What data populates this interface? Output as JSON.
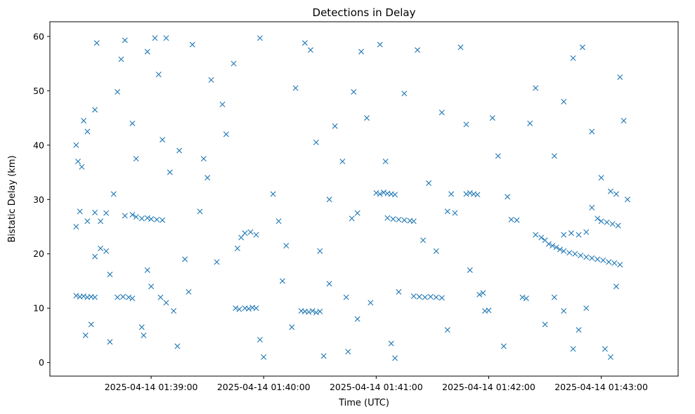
{
  "chart_data": {
    "type": "scatter",
    "title": "Detections in Delay",
    "xlabel": "Time (UTC)",
    "ylabel": "Bistatic Delay (km)",
    "x_tick_labels": [
      "2025-04-14 01:39:00",
      "2025-04-14 01:40:00",
      "2025-04-14 01:41:00",
      "2025-04-14 01:42:00",
      "2025-04-14 01:43:00"
    ],
    "y_tick_labels": [
      "0",
      "10",
      "20",
      "30",
      "40",
      "50",
      "60"
    ],
    "xlim": [
      "2025-04-14 01:38:06",
      "2025-04-14 01:43:41"
    ],
    "ylim": [
      -2.5,
      62.7
    ],
    "marker": "x",
    "color": "#1f77b4",
    "grid": false,
    "series": [
      {
        "points": [
          {
            "x": "2025-04-14 01:38:20",
            "y": 12.3
          },
          {
            "x": "2025-04-14 01:38:22",
            "y": 12.1
          },
          {
            "x": "2025-04-14 01:38:24",
            "y": 12.2
          },
          {
            "x": "2025-04-14 01:38:26",
            "y": 12.0
          },
          {
            "x": "2025-04-14 01:38:28",
            "y": 12.1
          },
          {
            "x": "2025-04-14 01:38:30",
            "y": 12.0
          },
          {
            "x": "2025-04-14 01:38:20",
            "y": 25.0
          },
          {
            "x": "2025-04-14 01:38:22",
            "y": 27.8
          },
          {
            "x": "2025-04-14 01:38:26",
            "y": 26.0
          },
          {
            "x": "2025-04-14 01:38:30",
            "y": 27.6
          },
          {
            "x": "2025-04-14 01:38:33",
            "y": 26.0
          },
          {
            "x": "2025-04-14 01:38:36",
            "y": 27.5
          },
          {
            "x": "2025-04-14 01:38:20",
            "y": 40.0
          },
          {
            "x": "2025-04-14 01:38:21",
            "y": 37.0
          },
          {
            "x": "2025-04-14 01:38:23",
            "y": 36.0
          },
          {
            "x": "2025-04-14 01:38:24",
            "y": 44.5
          },
          {
            "x": "2025-04-14 01:38:26",
            "y": 42.5
          },
          {
            "x": "2025-04-14 01:38:30",
            "y": 46.5
          },
          {
            "x": "2025-04-14 01:38:25",
            "y": 5.0
          },
          {
            "x": "2025-04-14 01:38:28",
            "y": 7.0
          },
          {
            "x": "2025-04-14 01:38:30",
            "y": 19.5
          },
          {
            "x": "2025-04-14 01:38:33",
            "y": 21.0
          },
          {
            "x": "2025-04-14 01:38:36",
            "y": 20.5
          },
          {
            "x": "2025-04-14 01:38:38",
            "y": 3.8
          },
          {
            "x": "2025-04-14 01:38:31",
            "y": 58.8
          },
          {
            "x": "2025-04-14 01:38:38",
            "y": 16.2
          },
          {
            "x": "2025-04-14 01:38:40",
            "y": 31.0
          },
          {
            "x": "2025-04-14 01:38:42",
            "y": 49.8
          },
          {
            "x": "2025-04-14 01:38:44",
            "y": 55.8
          },
          {
            "x": "2025-04-14 01:38:46",
            "y": 59.3
          },
          {
            "x": "2025-04-14 01:38:42",
            "y": 12.0
          },
          {
            "x": "2025-04-14 01:38:45",
            "y": 12.1
          },
          {
            "x": "2025-04-14 01:38:48",
            "y": 12.0
          },
          {
            "x": "2025-04-14 01:38:50",
            "y": 11.8
          },
          {
            "x": "2025-04-14 01:38:46",
            "y": 27.0
          },
          {
            "x": "2025-04-14 01:38:50",
            "y": 27.2
          },
          {
            "x": "2025-04-14 01:38:52",
            "y": 26.8
          },
          {
            "x": "2025-04-14 01:38:55",
            "y": 26.5
          },
          {
            "x": "2025-04-14 01:38:58",
            "y": 26.6
          },
          {
            "x": "2025-04-14 01:39:00",
            "y": 26.4
          },
          {
            "x": "2025-04-14 01:39:03",
            "y": 26.3
          },
          {
            "x": "2025-04-14 01:39:06",
            "y": 26.2
          },
          {
            "x": "2025-04-14 01:38:50",
            "y": 44.0
          },
          {
            "x": "2025-04-14 01:38:52",
            "y": 37.5
          },
          {
            "x": "2025-04-14 01:38:55",
            "y": 6.5
          },
          {
            "x": "2025-04-14 01:38:56",
            "y": 5.0
          },
          {
            "x": "2025-04-14 01:38:58",
            "y": 17.0
          },
          {
            "x": "2025-04-14 01:39:00",
            "y": 14.0
          },
          {
            "x": "2025-04-14 01:38:58",
            "y": 57.2
          },
          {
            "x": "2025-04-14 01:39:02",
            "y": 59.7
          },
          {
            "x": "2025-04-14 01:39:04",
            "y": 53.0
          },
          {
            "x": "2025-04-14 01:39:06",
            "y": 41.0
          },
          {
            "x": "2025-04-14 01:39:08",
            "y": 59.7
          },
          {
            "x": "2025-04-14 01:39:10",
            "y": 35.0
          },
          {
            "x": "2025-04-14 01:39:05",
            "y": 12.0
          },
          {
            "x": "2025-04-14 01:39:08",
            "y": 11.0
          },
          {
            "x": "2025-04-14 01:39:12",
            "y": 9.5
          },
          {
            "x": "2025-04-14 01:39:14",
            "y": 3.0
          },
          {
            "x": "2025-04-14 01:39:18",
            "y": 19.0
          },
          {
            "x": "2025-04-14 01:39:20",
            "y": 13.0
          },
          {
            "x": "2025-04-14 01:39:15",
            "y": 39.0
          },
          {
            "x": "2025-04-14 01:39:22",
            "y": 58.5
          },
          {
            "x": "2025-04-14 01:39:26",
            "y": 27.8
          },
          {
            "x": "2025-04-14 01:39:28",
            "y": 37.5
          },
          {
            "x": "2025-04-14 01:39:32",
            "y": 52.0
          },
          {
            "x": "2025-04-14 01:39:35",
            "y": 18.5
          },
          {
            "x": "2025-04-14 01:39:30",
            "y": 34.0
          },
          {
            "x": "2025-04-14 01:39:38",
            "y": 47.5
          },
          {
            "x": "2025-04-14 01:39:40",
            "y": 42.0
          },
          {
            "x": "2025-04-14 01:39:44",
            "y": 55.0
          },
          {
            "x": "2025-04-14 01:39:46",
            "y": 21.0
          },
          {
            "x": "2025-04-14 01:39:48",
            "y": 23.0
          },
          {
            "x": "2025-04-14 01:39:45",
            "y": 10.0
          },
          {
            "x": "2025-04-14 01:39:47",
            "y": 9.8
          },
          {
            "x": "2025-04-14 01:39:50",
            "y": 10.0
          },
          {
            "x": "2025-04-14 01:39:52",
            "y": 9.9
          },
          {
            "x": "2025-04-14 01:39:54",
            "y": 10.1
          },
          {
            "x": "2025-04-14 01:39:56",
            "y": 10.0
          },
          {
            "x": "2025-04-14 01:39:50",
            "y": 23.8
          },
          {
            "x": "2025-04-14 01:39:53",
            "y": 24.0
          },
          {
            "x": "2025-04-14 01:39:56",
            "y": 23.5
          },
          {
            "x": "2025-04-14 01:39:58",
            "y": 59.7
          },
          {
            "x": "2025-04-14 01:39:58",
            "y": 4.2
          },
          {
            "x": "2025-04-14 01:40:00",
            "y": 1.0
          },
          {
            "x": "2025-04-14 01:40:05",
            "y": 31.0
          },
          {
            "x": "2025-04-14 01:40:08",
            "y": 26.0
          },
          {
            "x": "2025-04-14 01:40:10",
            "y": 15.0
          },
          {
            "x": "2025-04-14 01:40:12",
            "y": 21.5
          },
          {
            "x": "2025-04-14 01:40:15",
            "y": 6.5
          },
          {
            "x": "2025-04-14 01:40:17",
            "y": 50.5
          },
          {
            "x": "2025-04-14 01:40:20",
            "y": 9.5
          },
          {
            "x": "2025-04-14 01:40:22",
            "y": 9.4
          },
          {
            "x": "2025-04-14 01:40:24",
            "y": 9.3
          },
          {
            "x": "2025-04-14 01:40:26",
            "y": 9.5
          },
          {
            "x": "2025-04-14 01:40:28",
            "y": 9.2
          },
          {
            "x": "2025-04-14 01:40:30",
            "y": 9.4
          },
          {
            "x": "2025-04-14 01:40:22",
            "y": 58.8
          },
          {
            "x": "2025-04-14 01:40:25",
            "y": 57.5
          },
          {
            "x": "2025-04-14 01:40:28",
            "y": 40.5
          },
          {
            "x": "2025-04-14 01:40:30",
            "y": 20.5
          },
          {
            "x": "2025-04-14 01:40:32",
            "y": 1.2
          },
          {
            "x": "2025-04-14 01:40:35",
            "y": 14.5
          },
          {
            "x": "2025-04-14 01:40:35",
            "y": 30.0
          },
          {
            "x": "2025-04-14 01:40:38",
            "y": 43.5
          },
          {
            "x": "2025-04-14 01:40:42",
            "y": 37.0
          },
          {
            "x": "2025-04-14 01:40:44",
            "y": 12.0
          },
          {
            "x": "2025-04-14 01:40:47",
            "y": 26.5
          },
          {
            "x": "2025-04-14 01:40:50",
            "y": 27.5
          },
          {
            "x": "2025-04-14 01:40:45",
            "y": 2.0
          },
          {
            "x": "2025-04-14 01:40:48",
            "y": 49.8
          },
          {
            "x": "2025-04-14 01:40:50",
            "y": 8.0
          },
          {
            "x": "2025-04-14 01:40:52",
            "y": 57.2
          },
          {
            "x": "2025-04-14 01:40:55",
            "y": 45.0
          },
          {
            "x": "2025-04-14 01:40:57",
            "y": 11.0
          },
          {
            "x": "2025-04-14 01:41:00",
            "y": 31.2
          },
          {
            "x": "2025-04-14 01:41:02",
            "y": 31.0
          },
          {
            "x": "2025-04-14 01:41:04",
            "y": 31.3
          },
          {
            "x": "2025-04-14 01:41:06",
            "y": 31.1
          },
          {
            "x": "2025-04-14 01:41:08",
            "y": 31.0
          },
          {
            "x": "2025-04-14 01:41:10",
            "y": 30.9
          },
          {
            "x": "2025-04-14 01:41:06",
            "y": 26.6
          },
          {
            "x": "2025-04-14 01:41:09",
            "y": 26.4
          },
          {
            "x": "2025-04-14 01:41:12",
            "y": 26.3
          },
          {
            "x": "2025-04-14 01:41:15",
            "y": 26.2
          },
          {
            "x": "2025-04-14 01:41:18",
            "y": 26.1
          },
          {
            "x": "2025-04-14 01:41:20",
            "y": 26.0
          },
          {
            "x": "2025-04-14 01:41:02",
            "y": 58.5
          },
          {
            "x": "2025-04-14 01:41:05",
            "y": 37.0
          },
          {
            "x": "2025-04-14 01:41:08",
            "y": 3.5
          },
          {
            "x": "2025-04-14 01:41:10",
            "y": 0.8
          },
          {
            "x": "2025-04-14 01:41:12",
            "y": 13.0
          },
          {
            "x": "2025-04-14 01:41:15",
            "y": 49.5
          },
          {
            "x": "2025-04-14 01:41:20",
            "y": 12.2
          },
          {
            "x": "2025-04-14 01:41:23",
            "y": 12.1
          },
          {
            "x": "2025-04-14 01:41:26",
            "y": 12.0
          },
          {
            "x": "2025-04-14 01:41:29",
            "y": 12.1
          },
          {
            "x": "2025-04-14 01:41:32",
            "y": 12.0
          },
          {
            "x": "2025-04-14 01:41:35",
            "y": 11.9
          },
          {
            "x": "2025-04-14 01:41:22",
            "y": 57.5
          },
          {
            "x": "2025-04-14 01:41:25",
            "y": 22.5
          },
          {
            "x": "2025-04-14 01:41:28",
            "y": 33.0
          },
          {
            "x": "2025-04-14 01:41:32",
            "y": 20.5
          },
          {
            "x": "2025-04-14 01:41:35",
            "y": 46.0
          },
          {
            "x": "2025-04-14 01:41:38",
            "y": 6.0
          },
          {
            "x": "2025-04-14 01:41:38",
            "y": 27.8
          },
          {
            "x": "2025-04-14 01:41:40",
            "y": 31.0
          },
          {
            "x": "2025-04-14 01:41:42",
            "y": 27.5
          },
          {
            "x": "2025-04-14 01:41:45",
            "y": 58.0
          },
          {
            "x": "2025-04-14 01:41:48",
            "y": 43.8
          },
          {
            "x": "2025-04-14 01:41:50",
            "y": 17.0
          },
          {
            "x": "2025-04-14 01:41:48",
            "y": 31.0
          },
          {
            "x": "2025-04-14 01:41:50",
            "y": 31.2
          },
          {
            "x": "2025-04-14 01:41:52",
            "y": 31.0
          },
          {
            "x": "2025-04-14 01:41:54",
            "y": 30.9
          },
          {
            "x": "2025-04-14 01:41:55",
            "y": 12.5
          },
          {
            "x": "2025-04-14 01:41:57",
            "y": 12.8
          },
          {
            "x": "2025-04-14 01:41:58",
            "y": 9.5
          },
          {
            "x": "2025-04-14 01:42:00",
            "y": 9.6
          },
          {
            "x": "2025-04-14 01:42:02",
            "y": 45.0
          },
          {
            "x": "2025-04-14 01:42:05",
            "y": 38.0
          },
          {
            "x": "2025-04-14 01:42:08",
            "y": 3.0
          },
          {
            "x": "2025-04-14 01:42:10",
            "y": 30.5
          },
          {
            "x": "2025-04-14 01:42:12",
            "y": 26.3
          },
          {
            "x": "2025-04-14 01:42:15",
            "y": 26.2
          },
          {
            "x": "2025-04-14 01:42:18",
            "y": 12.0
          },
          {
            "x": "2025-04-14 01:42:20",
            "y": 11.8
          },
          {
            "x": "2025-04-14 01:42:22",
            "y": 44.0
          },
          {
            "x": "2025-04-14 01:42:25",
            "y": 50.5
          },
          {
            "x": "2025-04-14 01:42:25",
            "y": 23.5
          },
          {
            "x": "2025-04-14 01:42:28",
            "y": 23.0
          },
          {
            "x": "2025-04-14 01:42:30",
            "y": 22.5
          },
          {
            "x": "2025-04-14 01:42:32",
            "y": 21.8
          },
          {
            "x": "2025-04-14 01:42:34",
            "y": 21.5
          },
          {
            "x": "2025-04-14 01:42:36",
            "y": 21.2
          },
          {
            "x": "2025-04-14 01:42:38",
            "y": 20.8
          },
          {
            "x": "2025-04-14 01:42:40",
            "y": 20.5
          },
          {
            "x": "2025-04-14 01:42:43",
            "y": 20.2
          },
          {
            "x": "2025-04-14 01:42:46",
            "y": 20.0
          },
          {
            "x": "2025-04-14 01:42:49",
            "y": 19.7
          },
          {
            "x": "2025-04-14 01:42:52",
            "y": 19.4
          },
          {
            "x": "2025-04-14 01:42:55",
            "y": 19.2
          },
          {
            "x": "2025-04-14 01:42:58",
            "y": 19.0
          },
          {
            "x": "2025-04-14 01:43:01",
            "y": 18.8
          },
          {
            "x": "2025-04-14 01:43:04",
            "y": 18.5
          },
          {
            "x": "2025-04-14 01:43:07",
            "y": 18.3
          },
          {
            "x": "2025-04-14 01:43:10",
            "y": 18.0
          },
          {
            "x": "2025-04-14 01:42:40",
            "y": 23.5
          },
          {
            "x": "2025-04-14 01:42:44",
            "y": 23.8
          },
          {
            "x": "2025-04-14 01:42:48",
            "y": 23.5
          },
          {
            "x": "2025-04-14 01:42:52",
            "y": 24.0
          },
          {
            "x": "2025-04-14 01:42:55",
            "y": 28.5
          },
          {
            "x": "2025-04-14 01:42:58",
            "y": 26.5
          },
          {
            "x": "2025-04-14 01:42:30",
            "y": 7.0
          },
          {
            "x": "2025-04-14 01:42:35",
            "y": 12.0
          },
          {
            "x": "2025-04-14 01:42:40",
            "y": 9.5
          },
          {
            "x": "2025-04-14 01:42:45",
            "y": 2.5
          },
          {
            "x": "2025-04-14 01:42:48",
            "y": 6.0
          },
          {
            "x": "2025-04-14 01:42:52",
            "y": 10.0
          },
          {
            "x": "2025-04-14 01:42:35",
            "y": 38.0
          },
          {
            "x": "2025-04-14 01:42:40",
            "y": 48.0
          },
          {
            "x": "2025-04-14 01:42:45",
            "y": 56.0
          },
          {
            "x": "2025-04-14 01:42:50",
            "y": 58.0
          },
          {
            "x": "2025-04-14 01:42:55",
            "y": 42.5
          },
          {
            "x": "2025-04-14 01:43:00",
            "y": 34.0
          },
          {
            "x": "2025-04-14 01:43:00",
            "y": 26.0
          },
          {
            "x": "2025-04-14 01:43:03",
            "y": 25.8
          },
          {
            "x": "2025-04-14 01:43:06",
            "y": 25.5
          },
          {
            "x": "2025-04-14 01:43:09",
            "y": 25.2
          },
          {
            "x": "2025-04-14 01:43:05",
            "y": 31.5
          },
          {
            "x": "2025-04-14 01:43:08",
            "y": 31.0
          },
          {
            "x": "2025-04-14 01:43:02",
            "y": 2.5
          },
          {
            "x": "2025-04-14 01:43:05",
            "y": 1.0
          },
          {
            "x": "2025-04-14 01:43:08",
            "y": 14.0
          },
          {
            "x": "2025-04-14 01:43:10",
            "y": 52.5
          },
          {
            "x": "2025-04-14 01:43:12",
            "y": 44.5
          },
          {
            "x": "2025-04-14 01:43:14",
            "y": 30.0
          }
        ]
      }
    ]
  }
}
